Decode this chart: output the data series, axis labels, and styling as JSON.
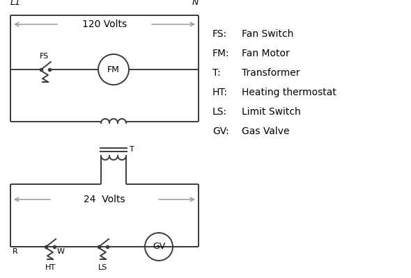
{
  "bg_color": "#ffffff",
  "line_color": "#3a3a3a",
  "arrow_color": "#999999",
  "text_color": "#000000",
  "fig_w": 5.9,
  "fig_h": 4.0,
  "dpi": 100,
  "legend": {
    "FS": "Fan Switch",
    "FM": "Fan Motor",
    "T": "Transformer",
    "HT": "Heating thermostat",
    "LS": "Limit Switch",
    "GV": "Gas Valve"
  }
}
